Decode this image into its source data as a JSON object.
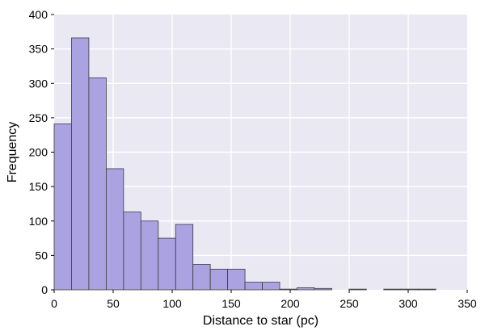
{
  "chart_data": {
    "type": "bar",
    "title": "",
    "xlabel": "Distance to star (pc)",
    "ylabel": "Frequency",
    "xlim": [
      0,
      350
    ],
    "ylim": [
      0,
      400
    ],
    "grid": true,
    "xticks": [
      0,
      50,
      100,
      150,
      200,
      250,
      300,
      350
    ],
    "yticks": [
      0,
      50,
      100,
      150,
      200,
      250,
      300,
      350,
      400
    ],
    "bin_edges": [
      0,
      14.7,
      29.4,
      44.1,
      58.8,
      73.5,
      88.2,
      102.9,
      117.6,
      132.3,
      147.0,
      161.7,
      176.4,
      191.1,
      205.8,
      220.5,
      235.2,
      249.9,
      264.6,
      279.3,
      294.0,
      308.7,
      323.4
    ],
    "values": [
      241,
      366,
      308,
      176,
      113,
      100,
      75,
      95,
      37,
      30,
      30,
      11,
      11,
      1,
      3,
      2,
      0,
      1,
      0,
      1,
      1,
      1
    ],
    "colors": {
      "background": "#eae8f2",
      "bar_fill": "#aba2e1",
      "bar_edge": "#3a3a3a",
      "grid": "#ffffff"
    }
  }
}
